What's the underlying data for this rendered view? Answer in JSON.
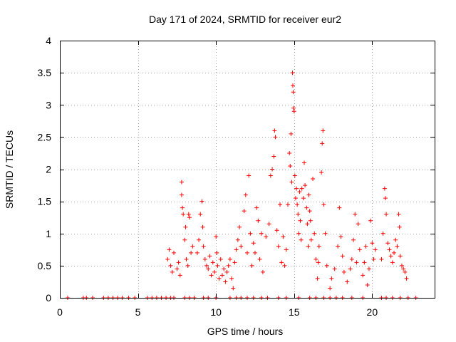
{
  "chart_data": {
    "type": "scatter",
    "title": "Day 171 of 2024, SRMTID for receiver eur2",
    "xlabel": "GPS time / hours",
    "ylabel": "SRMTID / TECUs",
    "xlim": [
      0,
      24
    ],
    "ylim": [
      0,
      4
    ],
    "xticks": [
      0,
      5,
      10,
      15,
      20
    ],
    "xtick_labels": [
      "0",
      "5",
      "10",
      "15",
      "20"
    ],
    "yticks": [
      0,
      0.5,
      1,
      1.5,
      2,
      2.5,
      3,
      3.5,
      4
    ],
    "ytick_labels": [
      "0",
      "0.5",
      "1",
      "1.5",
      "2",
      "2.5",
      "3",
      "3.5",
      "4"
    ],
    "grid": true,
    "marker": "plus",
    "color": "#ff0000",
    "series": [
      {
        "name": "SRMTID",
        "points": [
          [
            0.5,
            0
          ],
          [
            1.5,
            0
          ],
          [
            1.7,
            0
          ],
          [
            2.1,
            0
          ],
          [
            2.8,
            0
          ],
          [
            3.1,
            0
          ],
          [
            3.4,
            0
          ],
          [
            3.7,
            0
          ],
          [
            4.0,
            0
          ],
          [
            4.4,
            0
          ],
          [
            4.8,
            0
          ],
          [
            5.6,
            0
          ],
          [
            5.9,
            0
          ],
          [
            6.2,
            0
          ],
          [
            6.5,
            0
          ],
          [
            6.8,
            0
          ],
          [
            7.1,
            0
          ],
          [
            7.3,
            0
          ],
          [
            8.0,
            0
          ],
          [
            8.3,
            0
          ],
          [
            8.6,
            0
          ],
          [
            9.2,
            0
          ],
          [
            9.5,
            0
          ],
          [
            10.0,
            0
          ],
          [
            10.9,
            0
          ],
          [
            11.3,
            0
          ],
          [
            11.6,
            0
          ],
          [
            12.0,
            0
          ],
          [
            12.4,
            0
          ],
          [
            12.9,
            0
          ],
          [
            13.3,
            0
          ],
          [
            14.0,
            0
          ],
          [
            14.5,
            0
          ],
          [
            15.3,
            0
          ],
          [
            16.0,
            0
          ],
          [
            16.4,
            0
          ],
          [
            16.9,
            0
          ],
          [
            17.3,
            0
          ],
          [
            17.7,
            0
          ],
          [
            18.1,
            0
          ],
          [
            18.7,
            0
          ],
          [
            19.4,
            0
          ],
          [
            20.6,
            0
          ],
          [
            20.9,
            0
          ],
          [
            21.3,
            0
          ],
          [
            21.8,
            0
          ],
          [
            22.3,
            0
          ],
          [
            22.8,
            0
          ],
          [
            6.9,
            0.6
          ],
          [
            7.0,
            0.75
          ],
          [
            7.1,
            0.5
          ],
          [
            7.2,
            0.4
          ],
          [
            7.3,
            0.7
          ],
          [
            7.5,
            0.45
          ],
          [
            7.6,
            0.55
          ],
          [
            7.7,
            0.35
          ],
          [
            7.8,
            1.8
          ],
          [
            7.8,
            1.6
          ],
          [
            7.85,
            1.4
          ],
          [
            7.9,
            1.3
          ],
          [
            8.0,
            0.9
          ],
          [
            8.05,
            1.1
          ],
          [
            8.1,
            0.6
          ],
          [
            8.2,
            0.5
          ],
          [
            8.25,
            1.3
          ],
          [
            8.3,
            1.25
          ],
          [
            8.4,
            0.7
          ],
          [
            8.5,
            0.8
          ],
          [
            8.8,
            0.7
          ],
          [
            8.9,
            0.9
          ],
          [
            9.0,
            1.3
          ],
          [
            9.1,
            1.5
          ],
          [
            9.15,
            1.1
          ],
          [
            9.2,
            0.8
          ],
          [
            9.3,
            0.6
          ],
          [
            9.4,
            0.5
          ],
          [
            9.5,
            0.45
          ],
          [
            9.6,
            0.65
          ],
          [
            9.7,
            0.35
          ],
          [
            9.8,
            0.55
          ],
          [
            9.9,
            0.4
          ],
          [
            10.0,
            0.95
          ],
          [
            10.05,
            0.7
          ],
          [
            10.1,
            0.5
          ],
          [
            10.2,
            0.3
          ],
          [
            10.3,
            0.6
          ],
          [
            10.4,
            0.35
          ],
          [
            10.5,
            0.45
          ],
          [
            10.6,
            0.25
          ],
          [
            10.7,
            0.4
          ],
          [
            10.8,
            0.5
          ],
          [
            10.9,
            0.6
          ],
          [
            11.0,
            0.3
          ],
          [
            11.1,
            0.15
          ],
          [
            11.2,
            0.55
          ],
          [
            11.3,
            0.75
          ],
          [
            11.4,
            0.9
          ],
          [
            11.5,
            1.1
          ],
          [
            11.6,
            0.8
          ],
          [
            11.8,
            1.35
          ],
          [
            11.9,
            1.6
          ],
          [
            12.0,
            0.7
          ],
          [
            12.1,
            1.9
          ],
          [
            12.2,
            1.0
          ],
          [
            12.3,
            0.5
          ],
          [
            12.4,
            0.85
          ],
          [
            12.5,
            0.7
          ],
          [
            12.6,
            1.4
          ],
          [
            12.7,
            1.2
          ],
          [
            12.8,
            0.6
          ],
          [
            12.9,
            1.0
          ],
          [
            13.0,
            0.4
          ],
          [
            13.2,
            0.95
          ],
          [
            13.4,
            1.15
          ],
          [
            13.5,
            1.9
          ],
          [
            13.6,
            2.0
          ],
          [
            13.7,
            2.2
          ],
          [
            13.75,
            2.6
          ],
          [
            13.8,
            2.5
          ],
          [
            13.9,
            1.05
          ],
          [
            14.0,
            0.8
          ],
          [
            14.1,
            1.45
          ],
          [
            14.2,
            0.55
          ],
          [
            14.3,
            0.95
          ],
          [
            14.4,
            0.5
          ],
          [
            14.5,
            0.75
          ],
          [
            14.6,
            1.45
          ],
          [
            14.7,
            2.25
          ],
          [
            14.75,
            2.05
          ],
          [
            14.8,
            2.55
          ],
          [
            14.85,
            1.8
          ],
          [
            14.9,
            3.5
          ],
          [
            14.92,
            3.3
          ],
          [
            14.95,
            3.2
          ],
          [
            14.97,
            2.95
          ],
          [
            15.0,
            2.9
          ],
          [
            15.05,
            1.9
          ],
          [
            15.1,
            1.55
          ],
          [
            15.15,
            1.7
          ],
          [
            15.2,
            1.45
          ],
          [
            15.25,
            1.3
          ],
          [
            15.3,
            1.0
          ],
          [
            15.35,
            1.65
          ],
          [
            15.4,
            1.2
          ],
          [
            15.45,
            0.9
          ],
          [
            15.5,
            1.7
          ],
          [
            15.6,
            1.55
          ],
          [
            15.65,
            2.1
          ],
          [
            15.7,
            1.75
          ],
          [
            15.8,
            1.4
          ],
          [
            15.85,
            1.15
          ],
          [
            15.9,
            0.8
          ],
          [
            15.95,
            1.6
          ],
          [
            16.0,
            1.35
          ],
          [
            16.05,
            1.2
          ],
          [
            16.1,
            0.9
          ],
          [
            16.2,
            1.85
          ],
          [
            16.3,
            1.0
          ],
          [
            16.4,
            0.6
          ],
          [
            16.5,
            0.3
          ],
          [
            16.55,
            0.55
          ],
          [
            16.6,
            0.8
          ],
          [
            16.75,
            1.95
          ],
          [
            16.8,
            2.4
          ],
          [
            16.85,
            2.6
          ],
          [
            16.9,
            1.45
          ],
          [
            17.0,
            1.0
          ],
          [
            17.1,
            0.5
          ],
          [
            17.3,
            0.15
          ],
          [
            17.4,
            0.3
          ],
          [
            17.6,
            0.45
          ],
          [
            17.8,
            0.8
          ],
          [
            17.9,
            1.4
          ],
          [
            18.0,
            0.95
          ],
          [
            18.1,
            0.65
          ],
          [
            18.2,
            0.4
          ],
          [
            18.4,
            0.25
          ],
          [
            18.6,
            0.45
          ],
          [
            18.7,
            0.6
          ],
          [
            18.8,
            0.9
          ],
          [
            18.9,
            1.3
          ],
          [
            19.0,
            0.55
          ],
          [
            19.1,
            1.15
          ],
          [
            19.2,
            0.75
          ],
          [
            19.4,
            0.35
          ],
          [
            19.5,
            0.55
          ],
          [
            19.6,
            0.8
          ],
          [
            19.7,
            0.2
          ],
          [
            19.8,
            0.45
          ],
          [
            19.9,
            1.2
          ],
          [
            20.0,
            0.85
          ],
          [
            20.1,
            0.6
          ],
          [
            20.2,
            0.75
          ],
          [
            20.6,
            0.6
          ],
          [
            20.7,
            1.0
          ],
          [
            20.8,
            1.7
          ],
          [
            20.85,
            1.55
          ],
          [
            20.9,
            1.3
          ],
          [
            21.0,
            0.85
          ],
          [
            21.1,
            0.75
          ],
          [
            21.2,
            0.65
          ],
          [
            21.3,
            0.55
          ],
          [
            21.4,
            0.7
          ],
          [
            21.5,
            0.9
          ],
          [
            21.6,
            0.8
          ],
          [
            21.7,
            1.3
          ],
          [
            21.75,
            1.1
          ],
          [
            21.8,
            0.65
          ],
          [
            21.9,
            0.5
          ],
          [
            22.0,
            0.45
          ],
          [
            22.1,
            0.4
          ],
          [
            22.2,
            0.3
          ]
        ]
      }
    ]
  }
}
